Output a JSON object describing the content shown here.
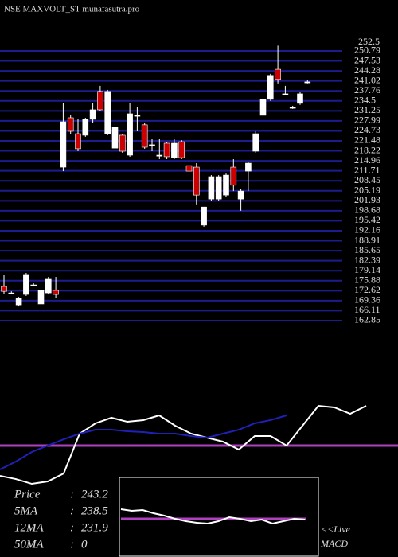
{
  "chart_data": [
    {
      "type": "candlestick",
      "title": "NSE MAXVOLT_ST munafasutra.pro",
      "open": [
        174.0,
        171.9,
        168.0,
        171.4,
        174.5,
        168.3,
        171.9,
        172.7,
        212.9,
        229.0,
        223.8,
        223.3,
        228.5,
        237.6,
        223.8,
        219.1,
        223.3,
        216.8,
        229.8,
        226.7,
        219.9,
        216.8,
        220.7,
        216.0,
        221.2,
        213.4,
        212.9,
        194.0,
        202.5,
        202.5,
        203.8,
        212.9,
        202.5,
        211.6,
        218.1,
        229.8,
        235.0,
        244.8,
        236.8,
        232.4,
        233.7,
        240.7
      ],
      "high": [
        177.9,
        172.4,
        170.6,
        178.4,
        175.0,
        173.2,
        177.1,
        177.1,
        233.7,
        229.8,
        228.5,
        229.0,
        233.7,
        239.4,
        238.1,
        226.4,
        223.8,
        233.7,
        232.4,
        227.2,
        222.0,
        222.0,
        221.2,
        222.0,
        221.7,
        214.2,
        214.2,
        199.9,
        210.3,
        210.3,
        210.8,
        215.5,
        205.9,
        214.7,
        224.6,
        235.7,
        243.3,
        252.5,
        239.4,
        232.9,
        237.3,
        241.2
      ],
      "low": [
        171.4,
        171.4,
        167.5,
        170.9,
        174.0,
        167.8,
        171.4,
        170.1,
        211.6,
        223.8,
        218.1,
        222.8,
        227.2,
        231.1,
        223.3,
        218.6,
        217.6,
        216.3,
        224.6,
        218.9,
        218.1,
        215.5,
        215.5,
        215.5,
        215.5,
        210.3,
        200.5,
        193.5,
        202.0,
        202.0,
        203.1,
        205.1,
        198.7,
        205.1,
        217.6,
        228.5,
        234.5,
        240.2,
        236.3,
        231.9,
        233.2,
        240.2
      ],
      "close": [
        172.4,
        171.9,
        170.1,
        177.9,
        174.5,
        172.7,
        176.6,
        171.4,
        227.7,
        224.6,
        218.9,
        228.5,
        231.6,
        231.6,
        237.6,
        225.9,
        218.1,
        230.3,
        229.8,
        219.4,
        220.2,
        216.8,
        216.3,
        220.7,
        216.0,
        211.6,
        203.8,
        199.9,
        209.8,
        209.8,
        210.3,
        207.0,
        205.1,
        214.2,
        223.8,
        235.0,
        242.8,
        241.5,
        236.8,
        232.4,
        236.8,
        240.7
      ],
      "ylim": [
        161.03,
        267.39
      ],
      "yticks": [
        250.79,
        247.53,
        244.28,
        241.02,
        237.76,
        234.5,
        231.25,
        227.99,
        224.73,
        221.48,
        218.22,
        214.96,
        211.71,
        208.45,
        205.19,
        201.93,
        198.68,
        195.42,
        192.16,
        188.91,
        185.65,
        182.39,
        179.14,
        175.88,
        172.62,
        169.36,
        166.11,
        162.85
      ],
      "grid": true,
      "grid_color": "#1c1c8e",
      "up_color": "#ffffff",
      "down_color": "#cc0000",
      "stats_separator": ":",
      "stats": [
        {
          "label": "Price",
          "value": 243.2
        },
        {
          "label": "5MA",
          "value": 238.5
        },
        {
          "label": "12MA",
          "value": 231.9
        },
        {
          "label": "50MA",
          "value": 0
        }
      ]
    },
    {
      "type": "line",
      "ylim": [
        0,
        100
      ],
      "reference": 46.2,
      "reference_color": "#b040c0",
      "series": [
        {
          "color": "#ffffff",
          "values": [
            16.9,
            13.8,
            9.2,
            11.5,
            19.2,
            57.7,
            67.7,
            73.1,
            69.2,
            70.8,
            75.4,
            65.4,
            57.7,
            53.8,
            50,
            42.3,
            55.4,
            55.4,
            46.2,
            65.4,
            84.6,
            83.1,
            76.9,
            84.6
          ]
        },
        {
          "color": "#2020b8",
          "values": [
            23.1,
            30.8,
            40,
            46.2,
            52.3,
            57.7,
            61.5,
            61.5,
            60,
            59.2,
            57.7,
            57.7,
            55.4,
            53.8,
            57.7,
            61.5,
            67.7,
            70.8,
            75.4
          ]
        }
      ]
    },
    {
      "type": "line",
      "label": [
        "<<Live",
        "MACD"
      ],
      "ylim": [
        0,
        100
      ],
      "reference": 48,
      "reference_color": "#b040c0",
      "series": [
        {
          "color": "#ffffff",
          "values": [
            60,
            58,
            59,
            55,
            52,
            48,
            45,
            43,
            42,
            45,
            50,
            48,
            45,
            47,
            42,
            45,
            48,
            47
          ]
        }
      ]
    }
  ]
}
